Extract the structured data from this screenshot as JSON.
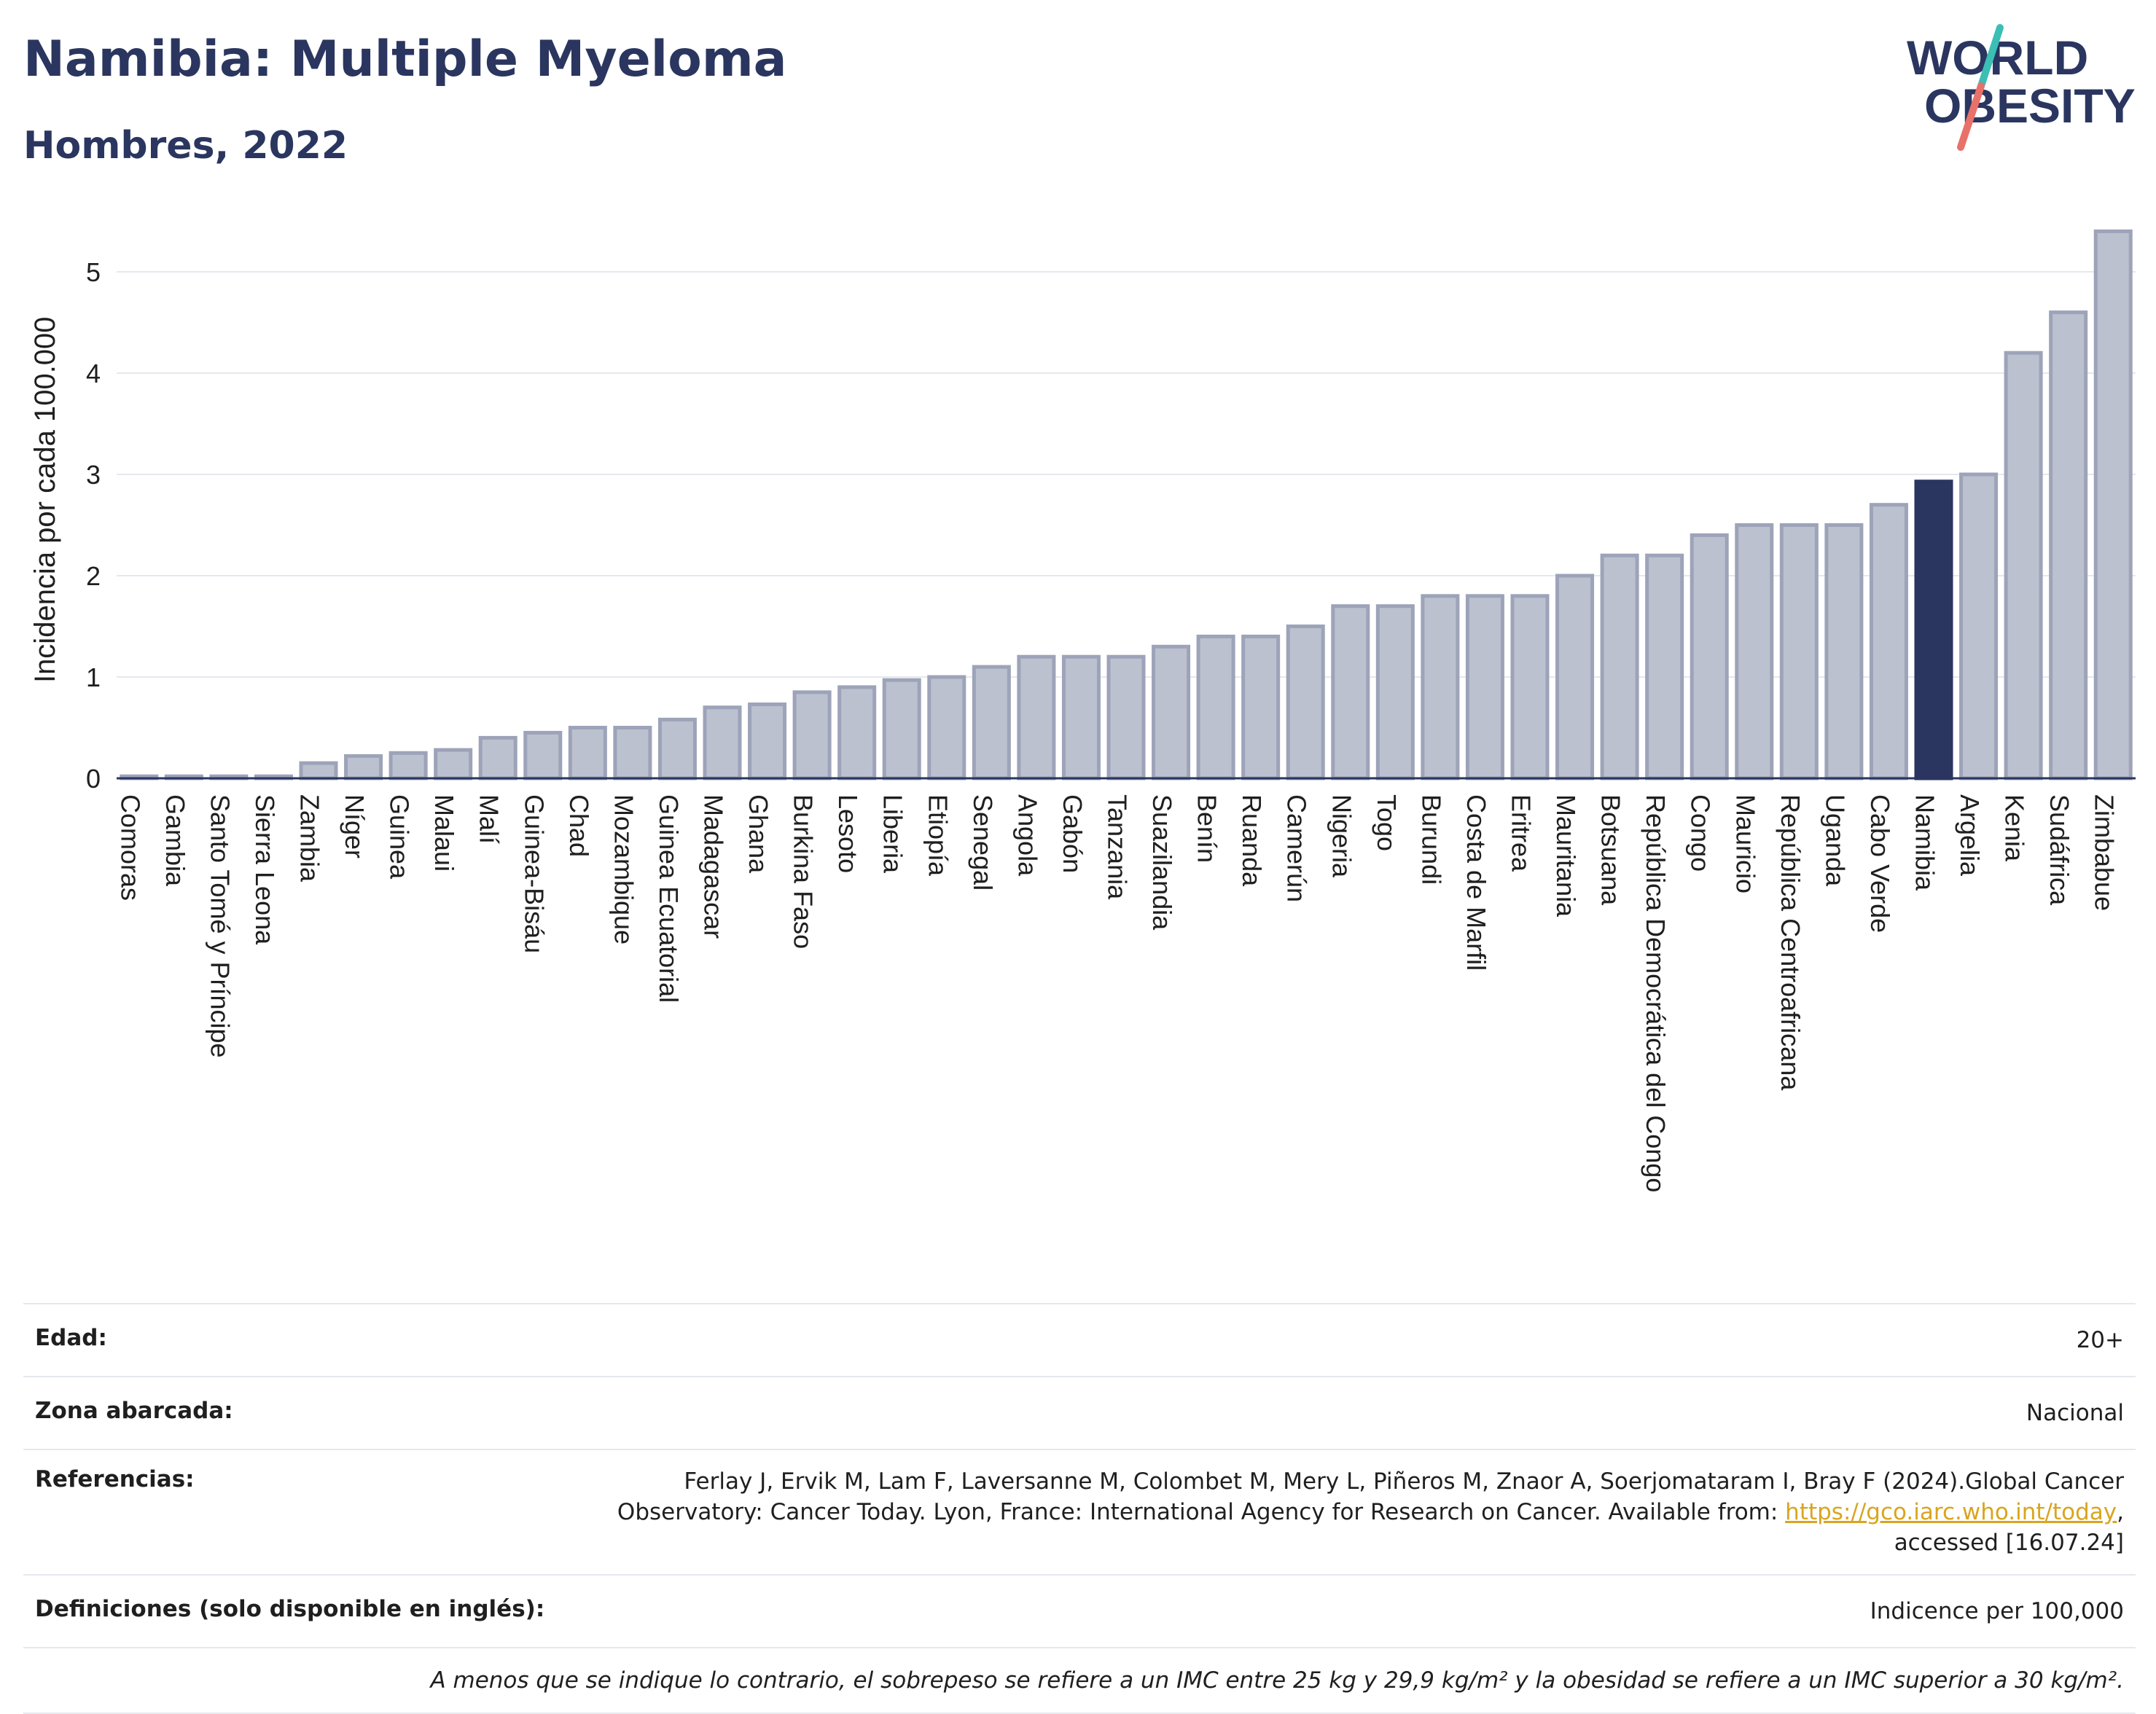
{
  "header": {
    "title": "Namibia: Multiple Myeloma",
    "subtitle": "Hombres, 2022"
  },
  "logo": {
    "line1": "WORLD",
    "line2": "OBESITY",
    "text_color": "#2a365f",
    "slash_colors": [
      "#3bbfb5",
      "#e8716a"
    ]
  },
  "colors": {
    "bar": "#bcc1cf",
    "bar_edge": "#9da3b8",
    "highlight": "#2a365f",
    "grid": "#e6e8ee",
    "axis": "#2a365f"
  },
  "chart_data": {
    "type": "bar",
    "title": "Namibia: Multiple Myeloma",
    "subtitle": "Hombres, 2022",
    "ylabel": "Incidencia por cada 100.000",
    "xlabel": "",
    "ylim": [
      0,
      5.5
    ],
    "yticks": [
      0,
      1,
      2,
      3,
      4,
      5
    ],
    "grid": true,
    "highlight": "Namibia",
    "categories": [
      "Comoras",
      "Gambia",
      "Santo Tomé y Príncipe",
      "Sierra Leona",
      "Zambia",
      "Níger",
      "Guinea",
      "Malaui",
      "Malí",
      "Guinea-Bisáu",
      "Chad",
      "Mozambique",
      "Guinea Ecuatorial",
      "Madagascar",
      "Ghana",
      "Burkina Faso",
      "Lesoto",
      "Liberia",
      "Etiopía",
      "Senegal",
      "Angola",
      "Gabón",
      "Tanzania",
      "Suazilandia",
      "Benín",
      "Ruanda",
      "Camerún",
      "Nigeria",
      "Togo",
      "Burundi",
      "Costa de Marfil",
      "Eritrea",
      "Mauritania",
      "Botsuana",
      "República Democrática del Congo",
      "Congo",
      "Mauricio",
      "República Centroafricana",
      "Uganda",
      "Cabo Verde",
      "Namibia",
      "Argelia",
      "Kenia",
      "Sudáfrica",
      "Zimbabue"
    ],
    "values": [
      0.02,
      0.02,
      0.02,
      0.02,
      0.15,
      0.22,
      0.25,
      0.28,
      0.4,
      0.45,
      0.5,
      0.5,
      0.58,
      0.7,
      0.73,
      0.85,
      0.9,
      0.97,
      1.0,
      1.1,
      1.2,
      1.2,
      1.2,
      1.3,
      1.4,
      1.4,
      1.5,
      1.7,
      1.7,
      1.8,
      1.8,
      1.8,
      2.0,
      2.2,
      2.2,
      2.4,
      2.5,
      2.5,
      2.5,
      2.7,
      2.93,
      3.0,
      4.2,
      4.6,
      5.4
    ]
  },
  "meta": {
    "age_label": "Edad:",
    "age_value": "20+",
    "area_label": "Zona abarcada:",
    "area_value": "Nacional",
    "refs_label": "Referencias:",
    "refs_line1": "Ferlay J, Ervik M, Lam F, Laversanne M, Colombet M, Mery L, Piñeros M, Znaor A, Soerjomataram I, Bray F (2024).Global Cancer",
    "refs_line2": "Observatory: Cancer Today. Lyon, France: International Agency for Research on Cancer. Available from: ",
    "refs_link": "https://gco.iarc.who.int/today",
    "refs_line2_end": ",",
    "refs_line3": "accessed [16.07.24]",
    "defs_label": "Definiciones (solo disponible en inglés):",
    "defs_value": "Indicence per 100,000",
    "footnote": "A menos que se indique lo contrario, el sobrepeso se refiere a un IMC entre 25 kg y 29,9 kg/m² y la obesidad se refiere a un IMC superior a 30 kg/m²."
  }
}
